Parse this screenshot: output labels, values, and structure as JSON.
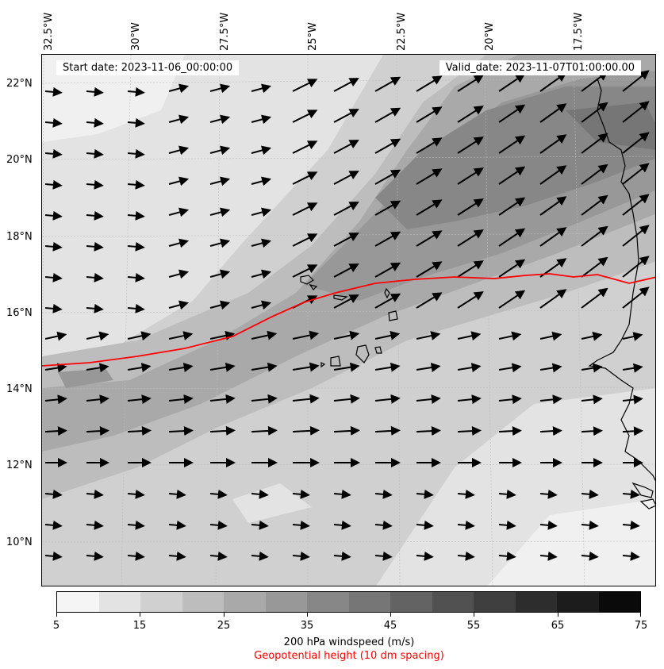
{
  "header": {
    "start_date": "Start date: 2023-11-06_00:00:00",
    "valid_date": "Valid_date: 2023-11-07T01:00:00.00"
  },
  "longitude_labels": [
    "32.5°W",
    "30°W",
    "27.5°W",
    "25°W",
    "22.5°W",
    "20°W",
    "17.5°W"
  ],
  "latitude_labels": [
    "22°N",
    "20°N",
    "18°N",
    "16°N",
    "14°N",
    "12°N",
    "10°N"
  ],
  "colorbar": {
    "ticks": [
      "5",
      "15",
      "25",
      "35",
      "45",
      "55",
      "65",
      "75"
    ],
    "colors": [
      "#f5f5f5",
      "#e3e3e3",
      "#d0d0d0",
      "#bdbdbd",
      "#a9a9a9",
      "#989898",
      "#878787",
      "#767676",
      "#636363",
      "#515151",
      "#3f3f3f",
      "#2d2d2d",
      "#1c1c1c",
      "#0a0a0a"
    ],
    "label": "200 hPa windspeed (m/s)",
    "geopotential_label": "Geopotential height (10 dm spacing)"
  },
  "colors": {
    "contour_line": "#ff0000",
    "coastline": "#000000",
    "wind_vectors": "#000000"
  }
}
